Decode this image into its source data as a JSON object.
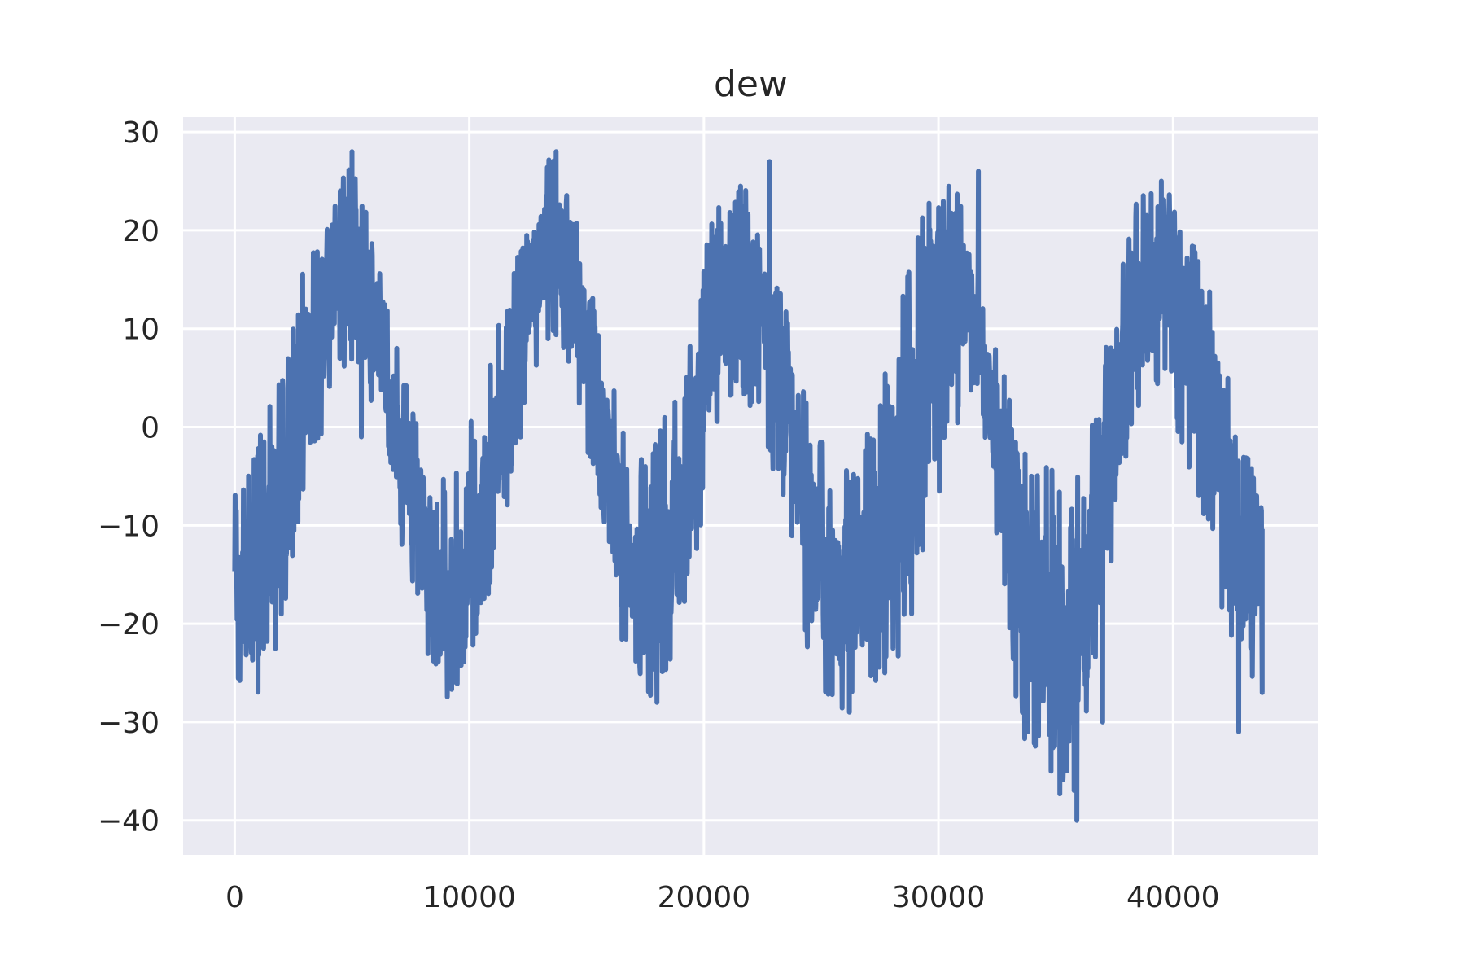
{
  "chart_data": {
    "type": "line",
    "title": "dew",
    "xlabel": "",
    "ylabel": "",
    "xlim": [
      -2200,
      46200
    ],
    "ylim": [
      -43.5,
      31.5
    ],
    "x_ticks": [
      0,
      10000,
      20000,
      30000,
      40000
    ],
    "x_tick_labels": [
      "0",
      "10000",
      "20000",
      "30000",
      "40000"
    ],
    "y_ticks": [
      30,
      20,
      10,
      0,
      -10,
      -20,
      -30,
      -40
    ],
    "y_tick_labels": [
      "30",
      "20",
      "10",
      "0",
      "−10",
      "−20",
      "−30",
      "−40"
    ],
    "grid": true,
    "legend": "none",
    "colors": {
      "series": "#4c72b0",
      "plot_background": "#eaeaf2",
      "grid": "#ffffff",
      "text": "#262626"
    },
    "series": [
      {
        "x_start": 0,
        "x_end": 43800,
        "envelope_x": [
          0,
          1000,
          2000,
          3000,
          4000,
          4800,
          5500,
          6500,
          7500,
          8500,
          9500,
          10500,
          11500,
          12500,
          13500,
          14500,
          15500,
          16500,
          17500,
          18500,
          19500,
          20500,
          21500,
          22500,
          23500,
          24500,
          25500,
          26500,
          27500,
          28500,
          29500,
          30500,
          31500,
          32500,
          33500,
          34500,
          35500,
          36500,
          37500,
          38500,
          39500,
          40500,
          41500,
          42500,
          43800
        ],
        "upper": [
          -7,
          0,
          5,
          17,
          21,
          28,
          23,
          13,
          3,
          -6,
          -3,
          4,
          13,
          24,
          28,
          22,
          11,
          1,
          -4,
          2,
          11,
          23,
          27,
          20,
          12,
          1,
          -3,
          -3,
          3,
          14,
          23,
          26,
          19,
          8,
          -1,
          -4,
          -5,
          2,
          13,
          24,
          25,
          21,
          15,
          3,
          -8
        ],
        "lower": [
          -27,
          -27,
          -22,
          -8,
          2,
          7,
          5,
          -8,
          -15,
          -28,
          -28,
          -20,
          -11,
          2,
          10,
          3,
          -8,
          -22,
          -28,
          -25,
          -15,
          -2,
          4,
          -1,
          -10,
          -25,
          -29,
          -28,
          -27,
          -23,
          -12,
          -2,
          4,
          -12,
          -32,
          -35,
          -40,
          -30,
          -12,
          2,
          4,
          -3,
          -14,
          -26,
          -27
        ],
        "typical": [
          -18,
          -16,
          -10,
          5,
          12,
          20,
          16,
          3,
          -5,
          -18,
          -18,
          -10,
          2,
          14,
          20,
          14,
          2,
          -10,
          -18,
          -14,
          -3,
          12,
          18,
          12,
          2,
          -10,
          -18,
          -16,
          -13,
          -5,
          10,
          16,
          12,
          -2,
          -16,
          -20,
          -22,
          -16,
          2,
          14,
          16,
          12,
          4,
          -10,
          -16
        ],
        "spikes": [
          {
            "x": 5000,
            "y": 28
          },
          {
            "x": 5400,
            "y": -1
          },
          {
            "x": 13700,
            "y": 28
          },
          {
            "x": 18000,
            "y": -28
          },
          {
            "x": 22800,
            "y": 27
          },
          {
            "x": 26200,
            "y": -29
          },
          {
            "x": 31700,
            "y": 26
          },
          {
            "x": 33800,
            "y": -31
          },
          {
            "x": 34800,
            "y": -35
          },
          {
            "x": 35500,
            "y": -27
          },
          {
            "x": 35900,
            "y": -40
          },
          {
            "x": 37000,
            "y": -30
          },
          {
            "x": 39500,
            "y": 25
          },
          {
            "x": 42800,
            "y": -31
          },
          {
            "x": 43800,
            "y": -27
          }
        ]
      }
    ]
  }
}
